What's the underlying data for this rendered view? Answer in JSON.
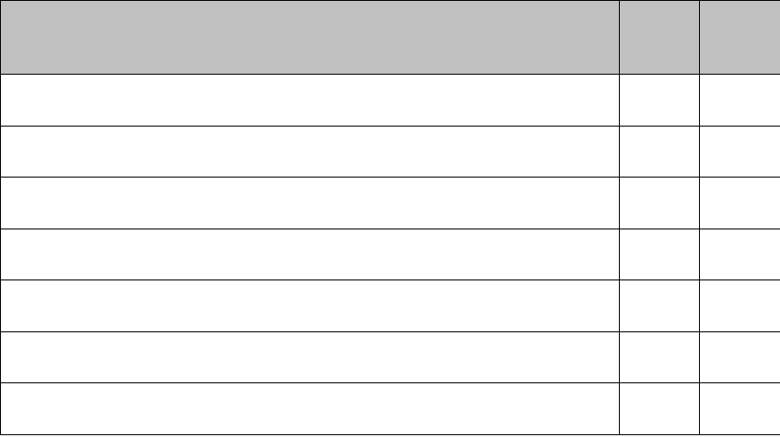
{
  "table": {
    "header_color": "#c0c0c0",
    "header": [
      "",
      "",
      ""
    ],
    "rows": [
      [
        "",
        "",
        ""
      ],
      [
        "",
        "",
        ""
      ],
      [
        "",
        "",
        ""
      ],
      [
        "",
        "",
        ""
      ],
      [
        "",
        "",
        ""
      ],
      [
        "",
        "",
        ""
      ],
      [
        "",
        "",
        ""
      ]
    ]
  }
}
